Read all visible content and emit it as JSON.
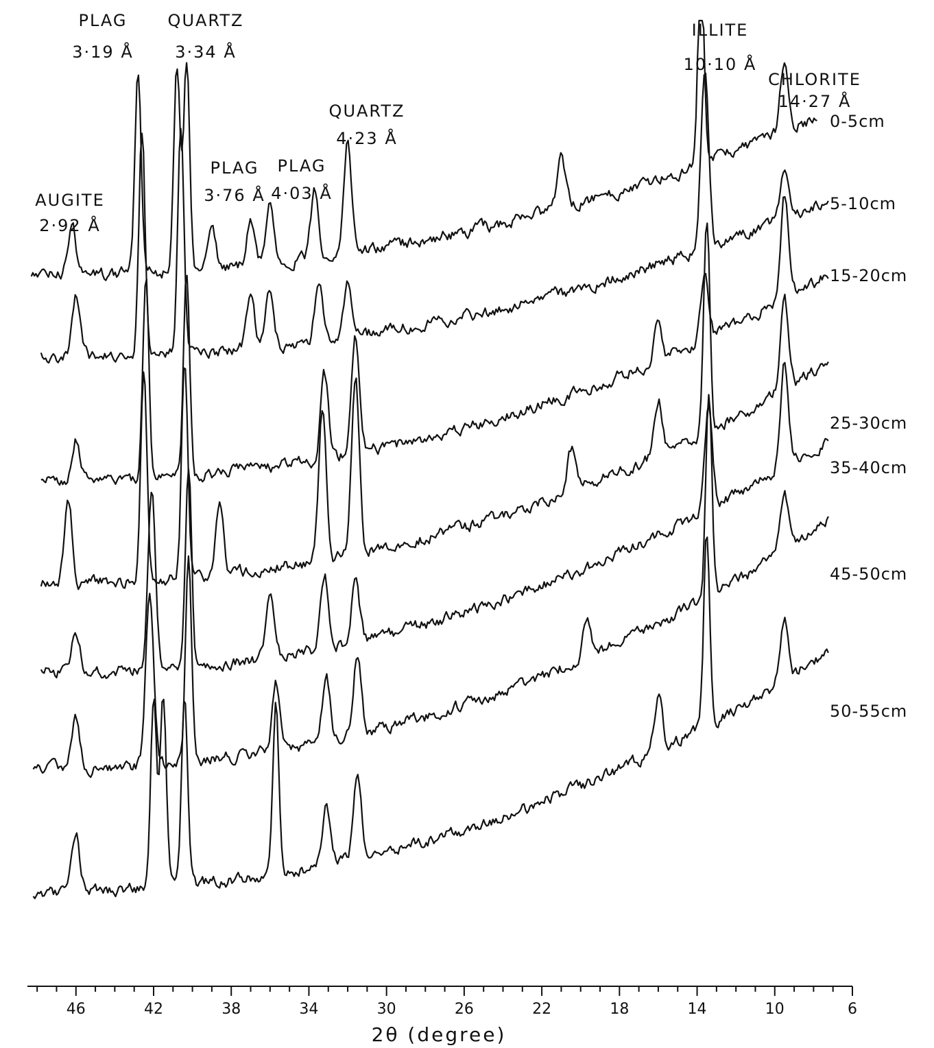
{
  "chart_data": {
    "type": "line",
    "xlabel": "2θ (degree)",
    "xlim": [
      48.5,
      6
    ],
    "x_reversed": true,
    "xticks": [
      46,
      42,
      38,
      34,
      30,
      26,
      22,
      18,
      14,
      10,
      6
    ],
    "xtick_labels": [
      "46",
      "42",
      "38",
      "34",
      "30",
      "26",
      "22",
      "18",
      "14",
      "10",
      "6"
    ],
    "minor_tick_step": 1,
    "grid": false,
    "legend": "labels at right end of each trace",
    "annotations": [
      {
        "mineral": "AUGITE",
        "d": "2·92 Å",
        "two_theta": 46.2
      },
      {
        "mineral": "PLAG",
        "d": "3·19 Å",
        "two_theta": 42.8
      },
      {
        "mineral": "QUARTZ",
        "d": "3·34 Å",
        "two_theta": 40.6
      },
      {
        "mineral": "PLAG",
        "d": "3·76 Å",
        "two_theta": 36.0
      },
      {
        "mineral": "PLAG",
        "d": "4·03 Å",
        "two_theta": 33.7
      },
      {
        "mineral": "QUARTZ",
        "d": "4·23 Å",
        "two_theta": 32.0
      },
      {
        "mineral": "ILLITE",
        "d": "10·10 Å",
        "two_theta": 13.8
      },
      {
        "mineral": "CHLORITE",
        "d": "14·27 Å",
        "two_theta": 9.5
      }
    ],
    "series": [
      {
        "name": "0-5cm",
        "x_start": 48.3,
        "x_end": 7.8,
        "y0": 0,
        "peaks": [
          [
            46.2,
            0.25
          ],
          [
            42.8,
            1.0
          ],
          [
            40.8,
            1.0
          ],
          [
            40.3,
            1.0
          ],
          [
            39.0,
            0.22
          ],
          [
            37.0,
            0.23
          ],
          [
            36.0,
            0.3
          ],
          [
            33.7,
            0.33
          ],
          [
            32.0,
            0.55
          ],
          [
            21.0,
            0.25
          ],
          [
            13.8,
            1.0
          ],
          [
            9.5,
            0.35
          ]
        ]
      },
      {
        "name": "5-10cm",
        "x_start": 47.8,
        "x_end": 7.2,
        "y0": 0,
        "peaks": [
          [
            46.0,
            0.28
          ],
          [
            42.6,
            1.0
          ],
          [
            40.6,
            1.0
          ],
          [
            37.0,
            0.22
          ],
          [
            36.0,
            0.26
          ],
          [
            33.5,
            0.26
          ],
          [
            32.0,
            0.26
          ],
          [
            13.6,
            0.8
          ],
          [
            9.5,
            0.2
          ]
        ]
      },
      {
        "name": "15-20cm",
        "x_start": 47.8,
        "x_end": 7.2,
        "y0": 0,
        "peaks": [
          [
            46.0,
            0.2
          ],
          [
            42.4,
            1.0
          ],
          [
            40.3,
            1.0
          ],
          [
            33.2,
            0.4
          ],
          [
            31.6,
            0.55
          ],
          [
            16.0,
            0.2
          ],
          [
            13.6,
            0.3
          ],
          [
            9.5,
            0.5
          ]
        ]
      },
      {
        "name": "25-30cm",
        "x_start": 47.8,
        "x_end": 7.2,
        "y0": 0,
        "peaks": [
          [
            46.4,
            0.4
          ],
          [
            42.5,
            1.0
          ],
          [
            40.4,
            1.0
          ],
          [
            38.6,
            0.3
          ],
          [
            33.3,
            0.7
          ],
          [
            31.6,
            0.8
          ],
          [
            20.5,
            0.2
          ],
          [
            16.0,
            0.25
          ],
          [
            13.5,
            1.0
          ],
          [
            9.5,
            0.42
          ]
        ]
      },
      {
        "name": "35-40cm",
        "x_start": 47.8,
        "x_end": 7.2,
        "y0": 0,
        "peaks": [
          [
            46.0,
            0.2
          ],
          [
            42.1,
            0.85
          ],
          [
            40.2,
            1.0
          ],
          [
            36.0,
            0.3
          ],
          [
            33.2,
            0.35
          ],
          [
            31.6,
            0.3
          ],
          [
            13.4,
            0.5
          ],
          [
            9.5,
            0.5
          ]
        ]
      },
      {
        "name": "45-50cm",
        "x_start": 48.2,
        "x_end": 7.2,
        "y0": 0,
        "peaks": [
          [
            46.0,
            0.25
          ],
          [
            42.2,
            0.85
          ],
          [
            40.2,
            1.0
          ],
          [
            35.7,
            0.32
          ],
          [
            33.1,
            0.3
          ],
          [
            31.5,
            0.4
          ],
          [
            19.7,
            0.2
          ],
          [
            13.4,
            1.0
          ],
          [
            9.5,
            0.3
          ]
        ]
      },
      {
        "name": "50-55cm",
        "x_start": 48.2,
        "x_end": 7.2,
        "y0": 0,
        "peaks": [
          [
            46.0,
            0.3
          ],
          [
            42.0,
            1.0
          ],
          [
            41.5,
            1.0
          ],
          [
            40.4,
            1.0
          ],
          [
            35.7,
            0.9
          ],
          [
            33.1,
            0.3
          ],
          [
            31.5,
            0.45
          ],
          [
            16.0,
            0.3
          ],
          [
            13.5,
            1.0
          ],
          [
            9.5,
            0.3
          ]
        ]
      }
    ],
    "intensity_units": "arbitrary",
    "peak_heights_are_relative": true
  }
}
